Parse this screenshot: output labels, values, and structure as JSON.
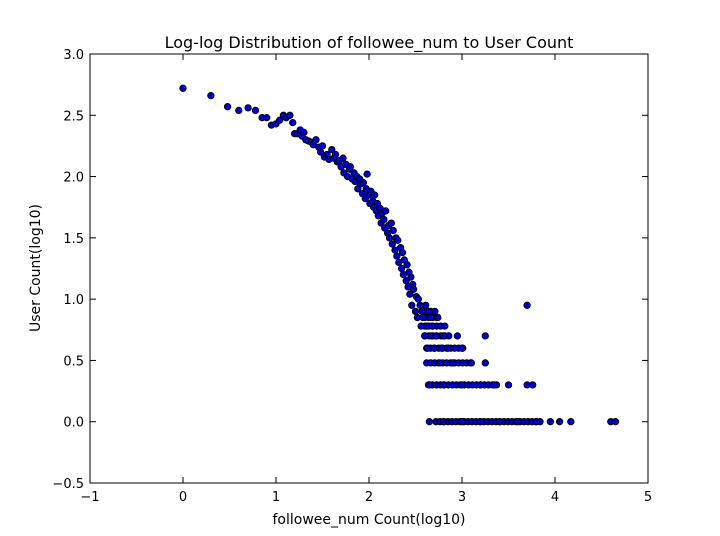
{
  "chart_data": {
    "type": "scatter",
    "title": "Log-log Distribution of followee_num to User Count",
    "xlabel": "followee_num Count(log10)",
    "ylabel": "User Count(log10)",
    "xlim": [
      -1,
      5
    ],
    "ylim": [
      -0.5,
      3.0
    ],
    "xticks": [
      -1,
      0,
      1,
      2,
      3,
      4,
      5
    ],
    "yticks": [
      -0.5,
      0.0,
      0.5,
      1.0,
      1.5,
      2.0,
      2.5,
      3.0
    ],
    "xtick_labels": [
      "−1",
      "0",
      "1",
      "2",
      "3",
      "4",
      "5"
    ],
    "ytick_labels": [
      "−0.5",
      "0.0",
      "0.5",
      "1.0",
      "1.5",
      "2.0",
      "2.5",
      "3.0"
    ],
    "grid": false,
    "marker_color": "#0000cc",
    "marker_edge": "#000000",
    "points": [
      [
        0.0,
        2.72
      ],
      [
        0.3,
        2.66
      ],
      [
        0.48,
        2.57
      ],
      [
        0.6,
        2.54
      ],
      [
        0.7,
        2.56
      ],
      [
        0.78,
        2.54
      ],
      [
        0.85,
        2.48
      ],
      [
        0.9,
        2.48
      ],
      [
        0.95,
        2.42
      ],
      [
        1.0,
        2.43
      ],
      [
        1.04,
        2.46
      ],
      [
        1.08,
        2.5
      ],
      [
        1.11,
        2.48
      ],
      [
        1.15,
        2.5
      ],
      [
        1.18,
        2.44
      ],
      [
        1.2,
        2.35
      ],
      [
        1.23,
        2.35
      ],
      [
        1.26,
        2.38
      ],
      [
        1.28,
        2.33
      ],
      [
        1.3,
        2.36
      ],
      [
        1.32,
        2.3
      ],
      [
        1.35,
        2.29
      ],
      [
        1.38,
        2.28
      ],
      [
        1.4,
        2.26
      ],
      [
        1.43,
        2.3
      ],
      [
        1.46,
        2.24
      ],
      [
        1.48,
        2.2
      ],
      [
        1.5,
        2.25
      ],
      [
        1.52,
        2.16
      ],
      [
        1.55,
        2.18
      ],
      [
        1.57,
        2.14
      ],
      [
        1.6,
        2.22
      ],
      [
        1.62,
        2.15
      ],
      [
        1.64,
        2.18
      ],
      [
        1.66,
        2.12
      ],
      [
        1.68,
        2.13
      ],
      [
        1.7,
        2.08
      ],
      [
        1.72,
        2.15
      ],
      [
        1.73,
        2.03
      ],
      [
        1.75,
        2.1
      ],
      [
        1.77,
        2.0
      ],
      [
        1.79,
        2.06
      ],
      [
        1.8,
        2.08
      ],
      [
        1.82,
        1.98
      ],
      [
        1.84,
        2.03
      ],
      [
        1.85,
        1.96
      ],
      [
        1.87,
        2.0
      ],
      [
        1.88,
        1.9
      ],
      [
        1.9,
        1.98
      ],
      [
        1.91,
        1.94
      ],
      [
        1.93,
        1.86
      ],
      [
        1.94,
        1.95
      ],
      [
        1.96,
        1.82
      ],
      [
        1.97,
        1.9
      ],
      [
        1.98,
        2.02
      ],
      [
        2.0,
        1.85
      ],
      [
        2.01,
        1.78
      ],
      [
        2.02,
        1.88
      ],
      [
        2.04,
        1.8
      ],
      [
        2.05,
        1.75
      ],
      [
        2.06,
        1.85
      ],
      [
        2.08,
        1.72
      ],
      [
        2.09,
        1.78
      ],
      [
        2.1,
        1.68
      ],
      [
        2.12,
        1.74
      ],
      [
        2.13,
        1.62
      ],
      [
        2.14,
        1.7
      ],
      [
        2.16,
        1.65
      ],
      [
        2.17,
        1.58
      ],
      [
        2.18,
        1.72
      ],
      [
        2.2,
        1.54
      ],
      [
        2.21,
        1.6
      ],
      [
        2.22,
        1.5
      ],
      [
        2.24,
        1.62
      ],
      [
        2.25,
        1.45
      ],
      [
        2.26,
        1.56
      ],
      [
        2.28,
        1.4
      ],
      [
        2.29,
        1.5
      ],
      [
        2.3,
        1.35
      ],
      [
        2.31,
        1.48
      ],
      [
        2.32,
        1.3
      ],
      [
        2.34,
        1.42
      ],
      [
        2.35,
        1.25
      ],
      [
        2.36,
        1.38
      ],
      [
        2.37,
        1.2
      ],
      [
        2.38,
        1.32
      ],
      [
        2.4,
        1.15
      ],
      [
        2.41,
        1.28
      ],
      [
        2.42,
        1.1
      ],
      [
        2.43,
        1.22
      ],
      [
        2.44,
        1.04
      ],
      [
        2.45,
        1.18
      ],
      [
        2.46,
        0.95
      ],
      [
        2.47,
        1.12
      ],
      [
        2.48,
        1.08
      ],
      [
        2.5,
        0.9
      ],
      [
        2.51,
        1.02
      ],
      [
        2.52,
        0.85
      ],
      [
        2.53,
        1.0
      ],
      [
        2.55,
        0.95
      ],
      [
        2.56,
        0.78
      ],
      [
        2.57,
        0.9
      ],
      [
        2.58,
        0.85
      ],
      [
        2.6,
        0.7
      ],
      [
        2.61,
        0.95
      ],
      [
        2.62,
        0.78
      ],
      [
        2.63,
        0.6
      ],
      [
        2.64,
        0.9
      ],
      [
        2.66,
        0.85
      ],
      [
        2.67,
        0.7
      ],
      [
        2.68,
        0.78
      ],
      [
        2.7,
        0.6
      ],
      [
        2.72,
        0.7
      ],
      [
        2.74,
        0.85
      ],
      [
        2.76,
        0.48
      ],
      [
        2.78,
        0.6
      ],
      [
        2.8,
        0.7
      ],
      [
        2.85,
        0.6
      ],
      [
        2.9,
        0.48
      ],
      [
        2.95,
        0.7
      ],
      [
        3.0,
        0.6
      ],
      [
        3.1,
        0.48
      ],
      [
        3.25,
        0.7
      ],
      [
        3.25,
        0.48
      ],
      [
        3.7,
        0.95
      ],
      [
        2.65,
        0.3
      ],
      [
        2.8,
        0.3
      ],
      [
        3.0,
        0.3
      ],
      [
        3.2,
        0.3
      ],
      [
        3.35,
        0.3
      ],
      [
        3.5,
        0.3
      ],
      [
        3.7,
        0.3
      ],
      [
        3.76,
        0.3
      ],
      [
        2.65,
        0.0
      ],
      [
        2.8,
        0.0
      ],
      [
        3.0,
        0.0
      ],
      [
        3.2,
        0.0
      ],
      [
        3.4,
        0.0
      ],
      [
        3.6,
        0.0
      ],
      [
        3.8,
        0.0
      ],
      [
        3.95,
        0.0
      ],
      [
        4.05,
        0.0
      ],
      [
        4.17,
        0.0
      ],
      [
        4.6,
        0.0
      ],
      [
        4.65,
        0.0
      ]
    ],
    "dense_rows": [
      {
        "y": 0.6,
        "x_from": 2.62,
        "x_to": 3.05
      },
      {
        "y": 0.48,
        "x_from": 2.62,
        "x_to": 3.1
      },
      {
        "y": 0.3,
        "x_from": 2.64,
        "x_to": 3.38
      },
      {
        "y": 0.0,
        "x_from": 2.72,
        "x_to": 3.88
      },
      {
        "y": 0.78,
        "x_from": 2.6,
        "x_to": 2.84
      },
      {
        "y": 0.7,
        "x_from": 2.6,
        "x_to": 2.9
      },
      {
        "y": 0.85,
        "x_from": 2.6,
        "x_to": 2.74
      },
      {
        "y": 0.9,
        "x_from": 2.58,
        "x_to": 2.72
      }
    ]
  }
}
